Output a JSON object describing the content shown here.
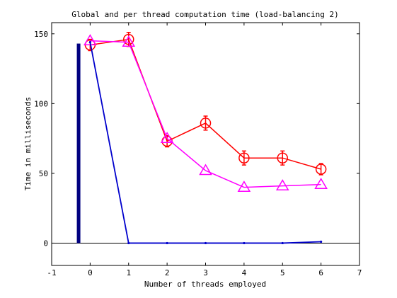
{
  "chart_data": {
    "type": "line",
    "title": "Global and per thread computation time (load-balancing 2)",
    "xlabel": "Number of threads employed",
    "ylabel": "Time in milliseconds",
    "xlim": [
      -1,
      7
    ],
    "ylim": [
      -16,
      158
    ],
    "xticks": [
      -1,
      0,
      1,
      2,
      3,
      4,
      5,
      6,
      7
    ],
    "yticks": [
      0,
      50,
      100,
      150
    ],
    "zero_line": true,
    "grid": false,
    "legend": "none",
    "series": [
      {
        "color": "#ff0000",
        "marker": "circle-errorbar",
        "x": [
          0,
          1,
          2,
          3,
          4,
          5,
          6
        ],
        "y": [
          142,
          146,
          73,
          86,
          61,
          61,
          53
        ],
        "err": [
          2,
          3,
          2,
          3,
          3,
          3,
          2
        ]
      },
      {
        "color": "#ff00ff",
        "marker": "triangle",
        "x": [
          0,
          1,
          2,
          3,
          4,
          5,
          6
        ],
        "y": [
          145,
          144,
          75,
          52,
          40,
          41,
          42
        ]
      },
      {
        "color": "#0000cc",
        "marker": "dot",
        "x": [
          0,
          1,
          2,
          3,
          4,
          5,
          6
        ],
        "y": [
          144,
          0,
          0,
          0,
          0,
          0,
          1
        ]
      }
    ],
    "bars": [
      {
        "color": "#000080",
        "x": -0.3,
        "y": 143
      }
    ]
  }
}
